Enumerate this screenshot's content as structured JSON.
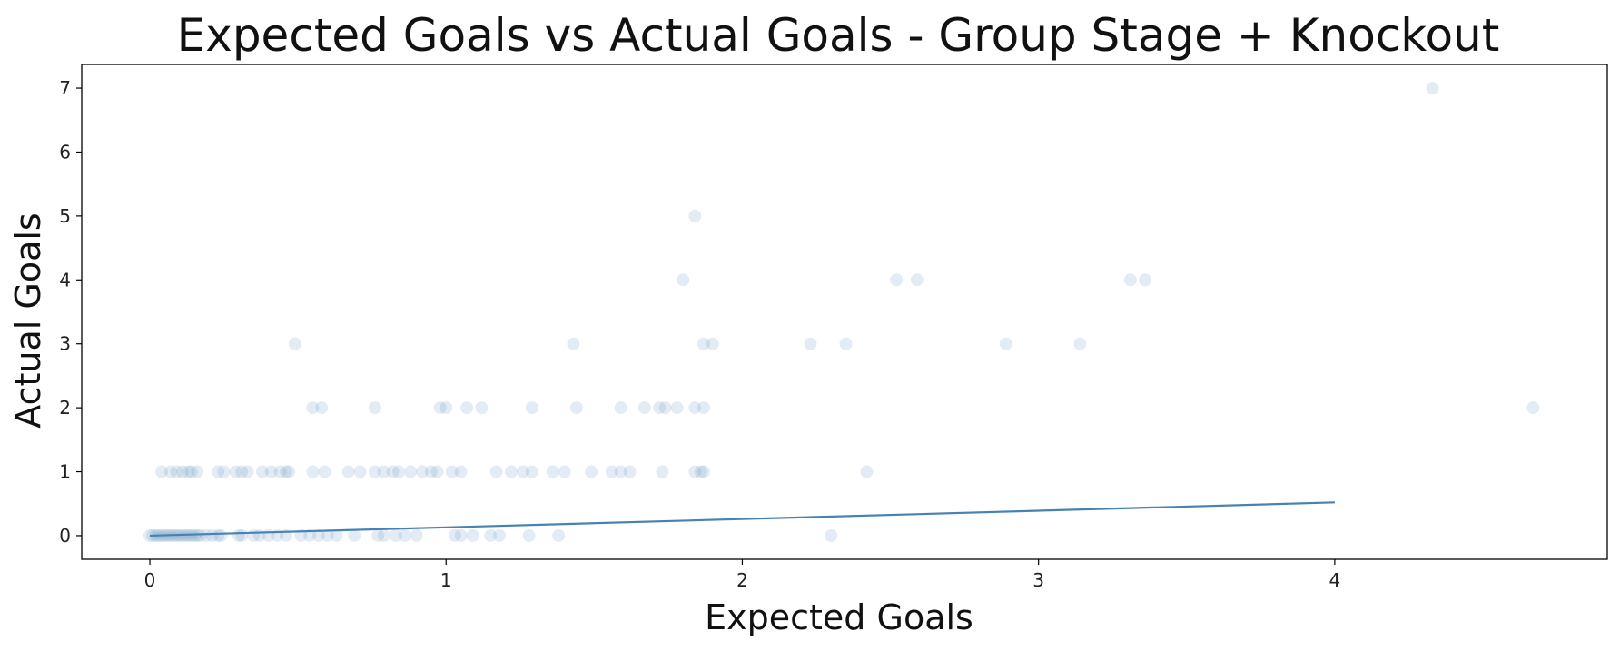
{
  "chart_data": {
    "type": "scatter",
    "title": "Expected Goals vs Actual Goals - Group Stage + Knockout",
    "xlabel": "Expected Goals",
    "ylabel": "Actual Goals",
    "xlim": [
      -0.23,
      4.92
    ],
    "ylim": [
      -0.37,
      7.37
    ],
    "xticks": [
      0,
      1,
      2,
      3,
      4
    ],
    "yticks": [
      0,
      1,
      2,
      3,
      4,
      5,
      6,
      7
    ],
    "grid": false,
    "colors": {
      "points": "#4682b4",
      "line": "#4682b4",
      "frame": "#000000"
    },
    "point_alpha": 0.15,
    "points": [
      [
        4.33,
        7
      ],
      [
        1.84,
        5
      ],
      [
        1.8,
        4
      ],
      [
        2.52,
        4
      ],
      [
        2.59,
        4
      ],
      [
        3.31,
        4
      ],
      [
        3.36,
        4
      ],
      [
        0.49,
        3
      ],
      [
        1.43,
        3
      ],
      [
        1.87,
        3
      ],
      [
        1.9,
        3
      ],
      [
        2.23,
        3
      ],
      [
        2.35,
        3
      ],
      [
        2.89,
        3
      ],
      [
        3.14,
        3
      ],
      [
        0.55,
        2
      ],
      [
        0.58,
        2
      ],
      [
        0.76,
        2
      ],
      [
        0.98,
        2
      ],
      [
        1.0,
        2
      ],
      [
        1.07,
        2
      ],
      [
        1.12,
        2
      ],
      [
        1.29,
        2
      ],
      [
        1.44,
        2
      ],
      [
        1.59,
        2
      ],
      [
        1.67,
        2
      ],
      [
        1.72,
        2
      ],
      [
        1.74,
        2
      ],
      [
        1.78,
        2
      ],
      [
        1.84,
        2
      ],
      [
        1.87,
        2
      ],
      [
        4.67,
        2
      ],
      [
        0.04,
        1
      ],
      [
        0.07,
        1
      ],
      [
        0.09,
        1
      ],
      [
        0.11,
        1
      ],
      [
        0.13,
        1
      ],
      [
        0.14,
        1
      ],
      [
        0.16,
        1
      ],
      [
        0.23,
        1
      ],
      [
        0.25,
        1
      ],
      [
        0.29,
        1
      ],
      [
        0.31,
        1
      ],
      [
        0.33,
        1
      ],
      [
        0.38,
        1
      ],
      [
        0.41,
        1
      ],
      [
        0.44,
        1
      ],
      [
        0.46,
        1
      ],
      [
        0.47,
        1
      ],
      [
        0.55,
        1
      ],
      [
        0.59,
        1
      ],
      [
        0.67,
        1
      ],
      [
        0.71,
        1
      ],
      [
        0.76,
        1
      ],
      [
        0.79,
        1
      ],
      [
        0.82,
        1
      ],
      [
        0.84,
        1
      ],
      [
        0.88,
        1
      ],
      [
        0.92,
        1
      ],
      [
        0.95,
        1
      ],
      [
        0.97,
        1
      ],
      [
        1.02,
        1
      ],
      [
        1.05,
        1
      ],
      [
        1.17,
        1
      ],
      [
        1.22,
        1
      ],
      [
        1.26,
        1
      ],
      [
        1.29,
        1
      ],
      [
        1.36,
        1
      ],
      [
        1.4,
        1
      ],
      [
        1.49,
        1
      ],
      [
        1.56,
        1
      ],
      [
        1.59,
        1
      ],
      [
        1.62,
        1
      ],
      [
        1.73,
        1
      ],
      [
        1.84,
        1
      ],
      [
        1.86,
        1
      ],
      [
        1.87,
        1
      ],
      [
        2.42,
        1
      ],
      [
        0.0,
        0
      ],
      [
        0.01,
        0
      ],
      [
        0.02,
        0
      ],
      [
        0.03,
        0
      ],
      [
        0.04,
        0
      ],
      [
        0.05,
        0
      ],
      [
        0.06,
        0
      ],
      [
        0.07,
        0
      ],
      [
        0.08,
        0
      ],
      [
        0.09,
        0
      ],
      [
        0.1,
        0
      ],
      [
        0.11,
        0
      ],
      [
        0.12,
        0
      ],
      [
        0.13,
        0
      ],
      [
        0.14,
        0
      ],
      [
        0.15,
        0
      ],
      [
        0.16,
        0
      ],
      [
        0.17,
        0
      ],
      [
        0.19,
        0
      ],
      [
        0.21,
        0
      ],
      [
        0.23,
        0
      ],
      [
        0.24,
        0
      ],
      [
        0.3,
        0
      ],
      [
        0.31,
        0
      ],
      [
        0.35,
        0
      ],
      [
        0.37,
        0
      ],
      [
        0.4,
        0
      ],
      [
        0.43,
        0
      ],
      [
        0.46,
        0
      ],
      [
        0.51,
        0
      ],
      [
        0.54,
        0
      ],
      [
        0.57,
        0
      ],
      [
        0.6,
        0
      ],
      [
        0.63,
        0
      ],
      [
        0.69,
        0
      ],
      [
        0.77,
        0
      ],
      [
        0.79,
        0
      ],
      [
        0.83,
        0
      ],
      [
        0.86,
        0
      ],
      [
        0.9,
        0
      ],
      [
        1.03,
        0
      ],
      [
        1.05,
        0
      ],
      [
        1.09,
        0
      ],
      [
        1.15,
        0
      ],
      [
        1.18,
        0
      ],
      [
        1.28,
        0
      ],
      [
        1.38,
        0
      ],
      [
        2.3,
        0
      ]
    ],
    "trendline": [
      [
        0,
        0
      ],
      [
        4.0,
        0.52
      ]
    ]
  }
}
